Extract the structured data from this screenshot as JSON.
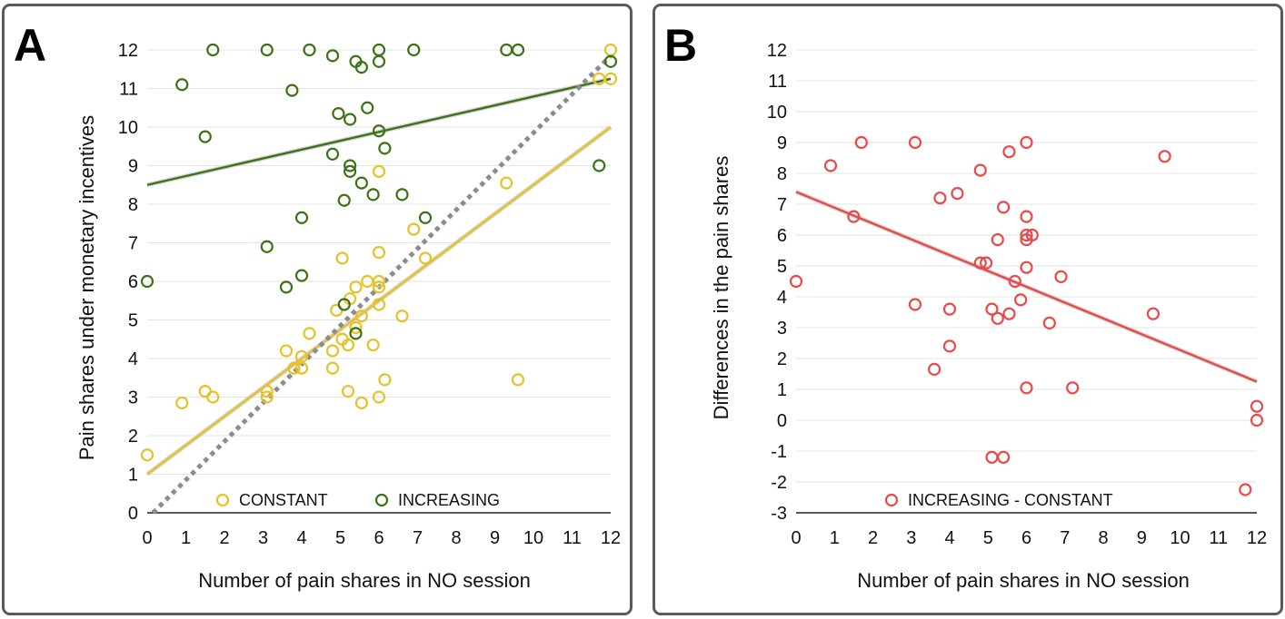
{
  "chart_data": [
    {
      "type": "scatter",
      "panel_label": "A",
      "xlabel": "Number of pain shares in NO session",
      "ylabel": "Pain shares under monetary incentives",
      "xlim": [
        0,
        12
      ],
      "ylim": [
        0,
        12
      ],
      "x_ticks": [
        "0",
        "1",
        "2",
        "3",
        "4",
        "5",
        "6",
        "7",
        "8",
        "9",
        "10",
        "11",
        "12"
      ],
      "y_ticks": [
        "0",
        "1",
        "2",
        "3",
        "4",
        "5",
        "6",
        "7",
        "8",
        "9",
        "10",
        "11",
        "12"
      ],
      "grid": "horizontal",
      "legend_position": "bottom",
      "series": [
        {
          "name": "CONSTANT",
          "color": "#e6c229",
          "marker": "open-circle",
          "points": [
            [
              0,
              1.5
            ],
            [
              0.9,
              2.85
            ],
            [
              1.5,
              3.15
            ],
            [
              1.7,
              3.0
            ],
            [
              3.1,
              3.0
            ],
            [
              3.1,
              3.15
            ],
            [
              3.6,
              4.2
            ],
            [
              3.8,
              3.75
            ],
            [
              4.0,
              3.75
            ],
            [
              4.0,
              4.05
            ],
            [
              4.2,
              4.65
            ],
            [
              4.8,
              3.75
            ],
            [
              4.8,
              4.2
            ],
            [
              4.9,
              5.25
            ],
            [
              5.05,
              4.5
            ],
            [
              5.05,
              6.6
            ],
            [
              5.2,
              3.15
            ],
            [
              5.2,
              4.35
            ],
            [
              5.25,
              5.55
            ],
            [
              5.4,
              4.65
            ],
            [
              5.4,
              4.8
            ],
            [
              5.4,
              5.85
            ],
            [
              5.55,
              2.85
            ],
            [
              5.55,
              5.1
            ],
            [
              5.7,
              6.0
            ],
            [
              5.85,
              4.35
            ],
            [
              6.0,
              3.0
            ],
            [
              6.0,
              5.4
            ],
            [
              6.0,
              5.85
            ],
            [
              6.0,
              6.0
            ],
            [
              6.0,
              6.75
            ],
            [
              6.0,
              8.85
            ],
            [
              6.15,
              3.45
            ],
            [
              6.6,
              5.1
            ],
            [
              6.9,
              7.35
            ],
            [
              7.2,
              6.6
            ],
            [
              9.3,
              8.55
            ],
            [
              9.6,
              3.45
            ],
            [
              11.7,
              11.25
            ],
            [
              12.0,
              11.25
            ],
            [
              12.0,
              12.0
            ]
          ]
        },
        {
          "name": "INCREASING",
          "color": "#3d7317",
          "marker": "open-circle",
          "points": [
            [
              0,
              6.0
            ],
            [
              0.9,
              11.1
            ],
            [
              1.5,
              9.75
            ],
            [
              1.7,
              12.0
            ],
            [
              3.1,
              6.9
            ],
            [
              3.1,
              12.0
            ],
            [
              3.6,
              5.85
            ],
            [
              3.75,
              10.95
            ],
            [
              4.0,
              7.65
            ],
            [
              4.0,
              6.15
            ],
            [
              4.2,
              12.0
            ],
            [
              4.8,
              9.3
            ],
            [
              4.8,
              11.85
            ],
            [
              4.95,
              10.35
            ],
            [
              5.1,
              8.1
            ],
            [
              5.1,
              5.4
            ],
            [
              5.25,
              8.85
            ],
            [
              5.25,
              9.0
            ],
            [
              5.25,
              10.2
            ],
            [
              5.4,
              4.65
            ],
            [
              5.4,
              11.7
            ],
            [
              5.55,
              8.55
            ],
            [
              5.55,
              11.55
            ],
            [
              5.7,
              10.5
            ],
            [
              5.85,
              8.25
            ],
            [
              6.0,
              9.9
            ],
            [
              6.0,
              11.7
            ],
            [
              6.0,
              12.0
            ],
            [
              6.15,
              9.45
            ],
            [
              6.6,
              8.25
            ],
            [
              6.9,
              12.0
            ],
            [
              7.2,
              7.65
            ],
            [
              9.3,
              12.0
            ],
            [
              9.6,
              12.0
            ],
            [
              11.7,
              9.0
            ],
            [
              12.0,
              11.7
            ]
          ]
        }
      ],
      "fit_lines": [
        {
          "series": "CONSTANT",
          "color": "#e6c229",
          "style": "solid",
          "from": [
            0,
            1.0
          ],
          "to": [
            12,
            10.0
          ]
        },
        {
          "series": "INCREASING",
          "color": "#3d7317",
          "style": "solid",
          "from": [
            0,
            8.5
          ],
          "to": [
            12,
            11.25
          ]
        },
        {
          "series": "identity",
          "color": "#8c8c8c",
          "style": "dotted",
          "from": [
            0.15,
            0
          ],
          "to": [
            12,
            11.85
          ]
        }
      ]
    },
    {
      "type": "scatter",
      "panel_label": "B",
      "xlabel": "Number of pain shares in NO session",
      "ylabel": "Differences in the pain shares",
      "xlim": [
        0,
        12
      ],
      "ylim": [
        -3,
        12
      ],
      "x_ticks": [
        "0",
        "1",
        "2",
        "3",
        "4",
        "5",
        "6",
        "7",
        "8",
        "9",
        "10",
        "11",
        "12"
      ],
      "y_ticks": [
        "-3",
        "-2",
        "-1",
        "0",
        "1",
        "2",
        "3",
        "4",
        "5",
        "6",
        "7",
        "8",
        "9",
        "10",
        "11",
        "12"
      ],
      "grid": "horizontal",
      "legend_position": "bottom",
      "series": [
        {
          "name": "INCREASING - CONSTANT",
          "color": "#e84a4a",
          "marker": "open-circle",
          "points": [
            [
              0,
              4.5
            ],
            [
              0.9,
              8.25
            ],
            [
              1.5,
              6.6
            ],
            [
              1.7,
              9.0
            ],
            [
              3.1,
              9.0
            ],
            [
              3.1,
              3.75
            ],
            [
              3.6,
              1.65
            ],
            [
              3.75,
              7.2
            ],
            [
              4.0,
              3.6
            ],
            [
              4.0,
              2.4
            ],
            [
              4.2,
              7.35
            ],
            [
              4.8,
              8.1
            ],
            [
              4.8,
              5.1
            ],
            [
              4.95,
              5.1
            ],
            [
              5.1,
              3.6
            ],
            [
              5.1,
              -1.2
            ],
            [
              5.25,
              5.85
            ],
            [
              5.25,
              3.3
            ],
            [
              5.4,
              6.9
            ],
            [
              5.4,
              -1.2
            ],
            [
              5.55,
              8.7
            ],
            [
              5.55,
              3.45
            ],
            [
              5.7,
              4.5
            ],
            [
              5.85,
              3.9
            ],
            [
              6.0,
              9.0
            ],
            [
              6.0,
              6.6
            ],
            [
              6.0,
              5.85
            ],
            [
              6.0,
              6.0
            ],
            [
              6.0,
              4.95
            ],
            [
              6.0,
              1.05
            ],
            [
              6.15,
              6.0
            ],
            [
              6.6,
              3.15
            ],
            [
              6.9,
              4.65
            ],
            [
              7.2,
              1.05
            ],
            [
              9.3,
              3.45
            ],
            [
              9.6,
              8.55
            ],
            [
              11.7,
              -2.25
            ],
            [
              12.0,
              0.45
            ],
            [
              12.0,
              0.0
            ]
          ]
        }
      ],
      "fit_lines": [
        {
          "series": "INCREASING - CONSTANT",
          "color": "#e84a4a",
          "style": "solid",
          "from": [
            0,
            7.4
          ],
          "to": [
            12,
            1.25
          ]
        }
      ]
    }
  ]
}
